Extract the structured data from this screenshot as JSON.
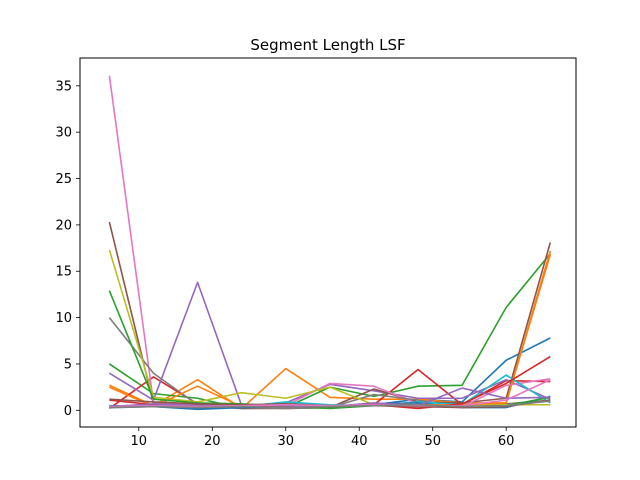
{
  "chart_data": {
    "type": "line",
    "title": "Segment Length LSF",
    "xlabel": "",
    "ylabel": "",
    "xlim": [
      2.0,
      69.5
    ],
    "ylim": [
      -1.8,
      38.0
    ],
    "x_ticks": [
      10,
      20,
      30,
      40,
      50,
      60
    ],
    "y_ticks": [
      0,
      5,
      10,
      15,
      20,
      25,
      30,
      35
    ],
    "grid": false,
    "x": [
      6,
      12,
      18,
      24,
      30,
      36,
      42,
      48,
      54,
      60,
      66
    ],
    "series": [
      {
        "color": "#1f77b4",
        "values": [
          0.3,
          0.4,
          0.2,
          0.4,
          0.4,
          0.5,
          0.6,
          1.2,
          0.9,
          5.4,
          7.8
        ]
      },
      {
        "color": "#ff7f0e",
        "values": [
          2.7,
          0.5,
          3.3,
          0.2,
          4.5,
          1.4,
          1.2,
          1.2,
          0.8,
          0.8,
          16.8
        ]
      },
      {
        "color": "#2ca02c",
        "values": [
          5.0,
          1.8,
          1.3,
          0.2,
          0.3,
          2.5,
          1.5,
          2.6,
          2.7,
          11.1,
          16.9
        ]
      },
      {
        "color": "#d62728",
        "values": [
          0.2,
          3.6,
          0.7,
          0.5,
          0.4,
          0.3,
          0.6,
          4.4,
          0.6,
          3.2,
          3.1
        ]
      },
      {
        "color": "#9467bd",
        "values": [
          4.0,
          1.1,
          13.8,
          0.5,
          0.8,
          2.8,
          2.1,
          1.3,
          1.3,
          3.3,
          1.2
        ]
      },
      {
        "color": "#8c564b",
        "values": [
          20.3,
          0.7,
          0.5,
          0.2,
          0.2,
          0.3,
          2.3,
          0.9,
          0.8,
          1.3,
          18.1
        ]
      },
      {
        "color": "#e377c2",
        "values": [
          36.1,
          0.8,
          0.6,
          0.3,
          0.5,
          2.9,
          2.6,
          0.7,
          0.4,
          2.7,
          3.4
        ]
      },
      {
        "color": "#7f7f7f",
        "values": [
          10.0,
          4.0,
          0.6,
          0.3,
          0.2,
          0.3,
          1.7,
          1.1,
          0.4,
          0.7,
          1.1
        ]
      },
      {
        "color": "#bcbd22",
        "values": [
          17.3,
          1.4,
          0.9,
          1.9,
          1.3,
          2.5,
          0.6,
          0.4,
          0.5,
          0.6,
          0.6
        ]
      },
      {
        "color": "#17becf",
        "values": [
          0.3,
          0.6,
          0.4,
          0.4,
          0.9,
          0.6,
          0.5,
          0.9,
          0.6,
          3.8,
          0.8
        ]
      },
      {
        "color": "#1f77b4",
        "values": [
          0.5,
          0.4,
          0.1,
          0.3,
          0.4,
          0.3,
          0.7,
          0.8,
          0.3,
          0.3,
          1.5
        ]
      },
      {
        "color": "#ff7f0e",
        "values": [
          2.5,
          0.4,
          2.6,
          0.4,
          0.4,
          0.4,
          0.7,
          0.6,
          0.6,
          0.8,
          17.2
        ]
      },
      {
        "color": "#2ca02c",
        "values": [
          12.9,
          1.2,
          0.8,
          0.7,
          0.4,
          0.2,
          0.5,
          0.6,
          0.4,
          0.5,
          1.4
        ]
      },
      {
        "color": "#d62728",
        "values": [
          1.1,
          0.6,
          0.5,
          0.5,
          0.3,
          0.4,
          0.6,
          0.2,
          0.7,
          2.9,
          5.8
        ]
      },
      {
        "color": "#9467bd",
        "values": [
          0.4,
          0.7,
          0.5,
          0.6,
          0.5,
          0.4,
          0.8,
          0.5,
          2.4,
          1.3,
          1.4
        ]
      },
      {
        "color": "#8c564b",
        "values": [
          1.2,
          0.9,
          0.7,
          0.6,
          0.7,
          0.5,
          0.5,
          0.4,
          0.3,
          0.4,
          1.1
        ]
      },
      {
        "color": "#e377c2",
        "values": [
          0.4,
          0.5,
          0.4,
          0.5,
          0.6,
          0.5,
          0.6,
          0.5,
          0.5,
          1.1,
          3.3
        ]
      },
      {
        "color": "#7f7f7f",
        "values": [
          0.3,
          0.4,
          0.3,
          0.4,
          0.3,
          0.4,
          0.5,
          0.6,
          0.4,
          0.5,
          1.0
        ]
      }
    ]
  }
}
